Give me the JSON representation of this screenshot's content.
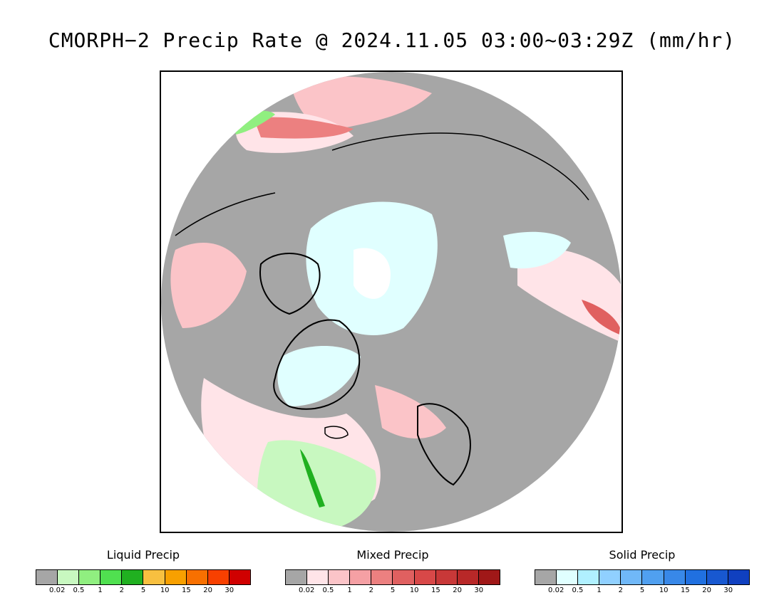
{
  "title": "CMORPH−2 Precip Rate @ 2024.11.05 03:00~03:29Z (mm/hr)",
  "map": {
    "projection_note": "polar-stereographic-north",
    "colors": {
      "no_precip": "#a6a6a6",
      "ocean_mask": "#ffffff",
      "coastline": "#000000"
    }
  },
  "legends": [
    {
      "key": "liquid",
      "title": "Liquid Precip",
      "colors": [
        "#a6a6a6",
        "#c8f8c0",
        "#90ef80",
        "#50e050",
        "#20b020",
        "#f8c040",
        "#f8a000",
        "#f87000",
        "#f84000",
        "#d00000"
      ],
      "ticks": [
        "0.02",
        "0.5",
        "1",
        "2",
        "5",
        "10",
        "15",
        "20",
        "30"
      ]
    },
    {
      "key": "mixed",
      "title": "Mixed Precip",
      "colors": [
        "#a6a6a6",
        "#ffe4e8",
        "#fbc4c8",
        "#f5a0a4",
        "#ec8080",
        "#e06060",
        "#d84848",
        "#c83838",
        "#b82828",
        "#a01818"
      ],
      "ticks": [
        "0.02",
        "0.5",
        "1",
        "2",
        "5",
        "10",
        "15",
        "20",
        "30"
      ]
    },
    {
      "key": "solid",
      "title": "Solid Precip",
      "colors": [
        "#a6a6a6",
        "#e0ffff",
        "#b0f0ff",
        "#90d0ff",
        "#70b8f8",
        "#50a0f0",
        "#3888e8",
        "#2070e0",
        "#1858d0",
        "#1040c0"
      ],
      "ticks": [
        "0.02",
        "0.5",
        "1",
        "2",
        "5",
        "10",
        "15",
        "20",
        "30"
      ]
    }
  ]
}
